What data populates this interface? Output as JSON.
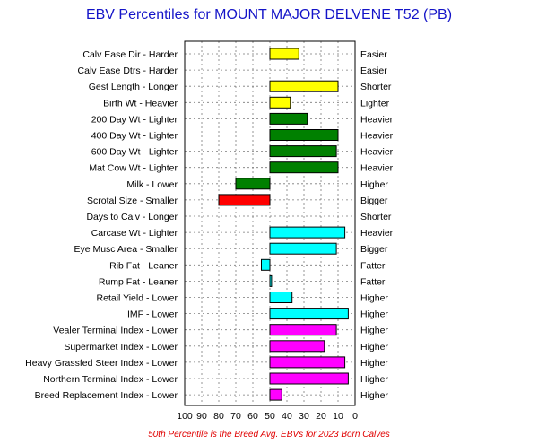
{
  "chart_data": {
    "type": "bar",
    "title": "EBV Percentiles for MOUNT MAJOR DELVENE T52 (PB)",
    "footnote": "50th Percentile is the Breed Avg. EBVs for 2023 Born Calves",
    "xlim": [
      100,
      0
    ],
    "x_ticks": [
      "100",
      "90",
      "80",
      "70",
      "60",
      "50",
      "40",
      "30",
      "20",
      "10",
      "0"
    ],
    "baseline": 50,
    "grid": true,
    "rows": [
      {
        "left": "Calv Ease Dir - Harder",
        "right": "Easier",
        "value": 33,
        "color": "#ffff00"
      },
      {
        "left": "Calv Ease Dtrs - Harder",
        "right": "Easier",
        "value": null,
        "color": "#ffff00"
      },
      {
        "left": "Gest Length - Longer",
        "right": "Shorter",
        "value": 10,
        "color": "#ffff00"
      },
      {
        "left": "Birth Wt - Heavier",
        "right": "Lighter",
        "value": 38,
        "color": "#ffff00"
      },
      {
        "left": "200 Day Wt - Lighter",
        "right": "Heavier",
        "value": 28,
        "color": "#008000"
      },
      {
        "left": "400 Day Wt - Lighter",
        "right": "Heavier",
        "value": 10,
        "color": "#008000"
      },
      {
        "left": "600 Day Wt - Lighter",
        "right": "Heavier",
        "value": 11,
        "color": "#008000"
      },
      {
        "left": "Mat Cow Wt - Lighter",
        "right": "Heavier",
        "value": 10,
        "color": "#008000"
      },
      {
        "left": "Milk - Lower",
        "right": "Higher",
        "value": 70,
        "color": "#008000"
      },
      {
        "left": "Scrotal Size - Smaller",
        "right": "Bigger",
        "value": 80,
        "color": "#ff0000"
      },
      {
        "left": "Days to Calv - Longer",
        "right": "Shorter",
        "value": null,
        "color": "#00ffff"
      },
      {
        "left": "Carcase Wt - Lighter",
        "right": "Heavier",
        "value": 6,
        "color": "#00ffff"
      },
      {
        "left": "Eye Musc Area - Smaller",
        "right": "Bigger",
        "value": 11,
        "color": "#00ffff"
      },
      {
        "left": "Rib Fat - Leaner",
        "right": "Fatter",
        "value": 55,
        "color": "#00ffff"
      },
      {
        "left": "Rump Fat - Leaner",
        "right": "Fatter",
        "value": 49,
        "color": "#00ffff"
      },
      {
        "left": "Retail Yield - Lower",
        "right": "Higher",
        "value": 37,
        "color": "#00ffff"
      },
      {
        "left": "IMF - Lower",
        "right": "Higher",
        "value": 4,
        "color": "#00ffff"
      },
      {
        "left": "Vealer Terminal Index - Lower",
        "right": "Higher",
        "value": 11,
        "color": "#ff00ff"
      },
      {
        "left": "Supermarket Index - Lower",
        "right": "Higher",
        "value": 18,
        "color": "#ff00ff"
      },
      {
        "left": "Heavy Grassfed Steer Index - Lower",
        "right": "Higher",
        "value": 6,
        "color": "#ff00ff"
      },
      {
        "left": "Northern Terminal Index - Lower",
        "right": "Higher",
        "value": 4,
        "color": "#ff00ff"
      },
      {
        "left": "Breed Replacement Index - Lower",
        "right": "Higher",
        "value": 43,
        "color": "#ff00ff"
      }
    ]
  }
}
